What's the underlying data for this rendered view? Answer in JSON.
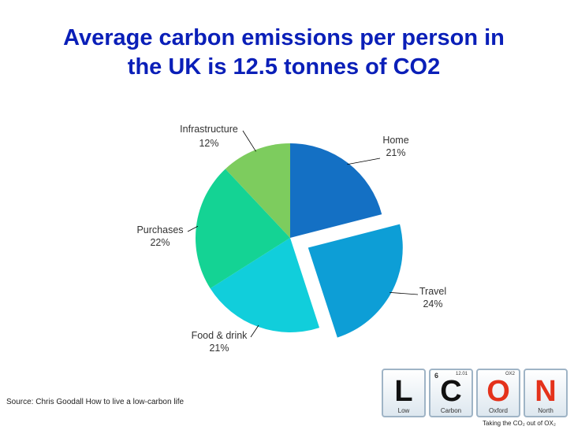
{
  "title": {
    "line1": "Average carbon emissions per person in",
    "line2": "the UK is 12.5 tonnes of CO2"
  },
  "chart_data": {
    "type": "pie",
    "slices": [
      {
        "name": "Home",
        "value": 21,
        "label": "21%",
        "color": "#1470c4",
        "exploded": false
      },
      {
        "name": "Travel",
        "value": 24,
        "label": "24%",
        "color": "#0d9ed6",
        "exploded": true
      },
      {
        "name": "Food & drink",
        "value": 21,
        "label": "21%",
        "color": "#11cedb",
        "exploded": false
      },
      {
        "name": "Purchases",
        "value": 22,
        "label": "22%",
        "color": "#14d394",
        "exploded": false
      },
      {
        "name": "Infrastructure",
        "value": 12,
        "label": "12%",
        "color": "#7dcc5e",
        "exploded": false
      }
    ]
  },
  "source": "Source: Chris Goodall How to live a low-carbon life",
  "logo": {
    "tiles": [
      {
        "symbol": "L",
        "word": "Low",
        "number": "",
        "mass": "",
        "color": "#111111"
      },
      {
        "symbol": "C",
        "word": "Carbon",
        "number": "6",
        "mass": "12.01",
        "color": "#111111"
      },
      {
        "symbol": "O",
        "word": "Oxford",
        "number": "",
        "mass": "OX2",
        "color": "#e4321b"
      },
      {
        "symbol": "N",
        "word": "North",
        "number": "",
        "mass": "",
        "color": "#e4321b"
      }
    ],
    "tagline": "Taking the CO₂ out of OX₂"
  }
}
